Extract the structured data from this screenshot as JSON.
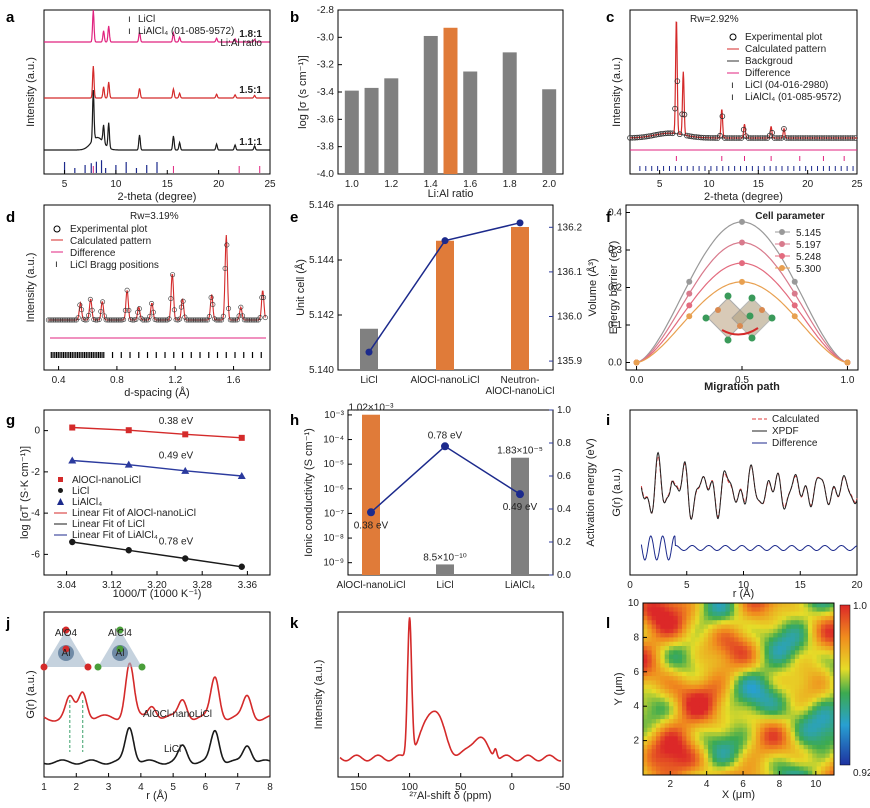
{
  "colors": {
    "pink": "#e0237f",
    "red": "#d42a2a",
    "black": "#1a1a1a",
    "navy": "#1c2a8c",
    "orange": "#e07b39",
    "gray": "#808080",
    "blue": "#2b3a9e"
  },
  "chart_data": [
    {
      "id": "a",
      "label": "a",
      "type": "line",
      "title": "",
      "xlabel": "2-theta (degree)",
      "ylabel": "Intensity (a.u.)",
      "xlim": [
        3,
        25
      ],
      "xticks": [
        "5",
        "10",
        "15",
        "20",
        "25"
      ],
      "legend": [
        "LiCl",
        "LiAlCl₄ (01-085-9572)"
      ],
      "annotation_title": "Li:Al ratio",
      "series": [
        {
          "name": "1.8:1",
          "color": "#e0237f"
        },
        {
          "name": "1.5:1",
          "color": "#d42a2a"
        },
        {
          "name": "1.1:1",
          "color": "#1a1a1a"
        }
      ]
    },
    {
      "id": "b",
      "label": "b",
      "type": "bar",
      "xlabel": "Li:Al ratio",
      "ylabel": "log [σ (s cm⁻¹)]",
      "ylim": [
        -4.0,
        -2.8
      ],
      "xticks": [
        "1.0",
        "1.2",
        "1.4",
        "1.6",
        "1.8",
        "2.0"
      ],
      "yticks": [
        "-4.0",
        "-3.8",
        "-3.6",
        "-3.4",
        "-3.2",
        "-3.0",
        "-2.8"
      ],
      "x": [
        1.0,
        1.1,
        1.2,
        1.4,
        1.5,
        1.6,
        1.8,
        2.0
      ],
      "values": [
        -3.39,
        -3.37,
        -3.3,
        -2.99,
        -2.93,
        -3.25,
        -3.11,
        -3.38
      ],
      "highlight_index": 4
    },
    {
      "id": "c",
      "label": "c",
      "type": "line",
      "xlabel": "2-theta (degree)",
      "ylabel": "Intensity (a.u.)",
      "xlim": [
        2,
        25
      ],
      "xticks": [
        "5",
        "10",
        "15",
        "20",
        "25"
      ],
      "rw": "Rw=2.92%",
      "legend": [
        "Experimental plot",
        "Calculated pattern",
        "Backgroud",
        "Difference",
        "LiCl (04-016-2980)",
        "LiAlCl₄ (01-085-9572)"
      ]
    },
    {
      "id": "d",
      "label": "d",
      "type": "line",
      "xlabel": "d-spacing (Å)",
      "ylabel": "Intensity (a.u.)",
      "xlim": [
        0.3,
        1.85
      ],
      "xticks": [
        "0.4",
        "0.8",
        "1.2",
        "1.6"
      ],
      "rw": "Rw=3.19%",
      "legend": [
        "Experimental plot",
        "Calculated pattern",
        "Difference",
        "LiCl Bragg positions"
      ]
    },
    {
      "id": "e",
      "label": "e",
      "type": "bar",
      "categories": [
        "LiCl",
        "AlOCl-nanoLiCl",
        "Neutron-\nAlOCl-nanoLiCl"
      ],
      "ylabel": "Unit cell (Å)",
      "y2label": "Volume (Å³)",
      "ylim": [
        5.14,
        5.146
      ],
      "y2lim": [
        135.88,
        136.25
      ],
      "yticks": [
        "5.140",
        "5.142",
        "5.144",
        "5.146"
      ],
      "y2ticks": [
        "135.9",
        "136.0",
        "136.1",
        "136.2"
      ],
      "values": [
        5.1415,
        5.1447,
        5.1452
      ],
      "volume": [
        135.92,
        136.17,
        136.21
      ]
    },
    {
      "id": "f",
      "label": "f",
      "type": "line",
      "xlabel": "Migration path",
      "ylabel": "Energy barrier (eV)",
      "xlim": [
        -0.05,
        1.05
      ],
      "ylim": [
        -0.02,
        0.42
      ],
      "xticks": [
        "0.0",
        "0.5",
        "1.0"
      ],
      "yticks": [
        "0.0",
        "0.1",
        "0.2",
        "0.3",
        "0.4"
      ],
      "legend_title": "Cell parameter",
      "series": [
        {
          "name": "5.145",
          "peak": 0.375,
          "color": "#999999"
        },
        {
          "name": "5.197",
          "peak": 0.32,
          "color": "#d87a8c"
        },
        {
          "name": "5.248",
          "peak": 0.265,
          "color": "#e36b7e"
        },
        {
          "name": "5.300",
          "peak": 0.215,
          "color": "#e8a050"
        }
      ]
    },
    {
      "id": "g",
      "label": "g",
      "type": "scatter",
      "xlabel": "1000/T (1000 K⁻¹)",
      "ylabel": "log [σT (S·K cm⁻¹)]",
      "xlim": [
        3.0,
        3.4
      ],
      "ylim": [
        -7,
        1
      ],
      "xticks": [
        "3.04",
        "3.12",
        "3.20",
        "3.28",
        "3.36"
      ],
      "yticks": [
        "-6",
        "-4",
        "-2",
        "0"
      ],
      "legend": [
        "AlOCl-nanoLiCl",
        "LiCl",
        "LiAlCl₄",
        "Linear Fit of AlOCl-nanoLiCl",
        "Linear Fit of LiCl",
        "Linear Fit of LiAlCl₄"
      ],
      "series": [
        {
          "name": "AlOCl-nanoLiCl",
          "x": [
            3.05,
            3.15,
            3.25,
            3.35
          ],
          "y": [
            0.15,
            0.02,
            -0.18,
            -0.35
          ],
          "energy": "0.38 eV",
          "color": "#d42a2a"
        },
        {
          "name": "LiAlCl₄",
          "x": [
            3.05,
            3.15,
            3.25,
            3.35
          ],
          "y": [
            -1.45,
            -1.65,
            -1.95,
            -2.2
          ],
          "energy": "0.49 eV",
          "color": "#2b3a9e"
        },
        {
          "name": "LiCl",
          "x": [
            3.05,
            3.15,
            3.25,
            3.35
          ],
          "y": [
            -5.4,
            -5.8,
            -6.2,
            -6.6
          ],
          "energy": "0.78 eV",
          "color": "#1a1a1a"
        }
      ]
    },
    {
      "id": "h",
      "label": "h",
      "type": "bar",
      "categories": [
        "AlOCl-nanoLiCl",
        "LiCl",
        "LiAlCl₄"
      ],
      "ylabel": "Ionic conductivity (S cm⁻¹)",
      "y2label": "Activation energy (eV)",
      "values": [
        0.00102,
        8.5e-10,
        1.83e-05
      ],
      "value_labels": [
        "1.02×10⁻³",
        "8.5×10⁻¹⁰",
        "1.83×10⁻⁵"
      ],
      "yticks": [
        "10⁻⁹",
        "10⁻⁸",
        "10⁻⁷",
        "10⁻⁶",
        "10⁻⁵",
        "10⁻⁴",
        "10⁻³"
      ],
      "y2ticks": [
        "0.0",
        "0.2",
        "0.4",
        "0.6",
        "0.8",
        "1.0"
      ],
      "energy": [
        0.38,
        0.78,
        0.49
      ],
      "energy_labels": [
        "0.38 eV",
        "0.78 eV",
        "0.49 eV"
      ]
    },
    {
      "id": "i",
      "label": "i",
      "type": "line",
      "xlabel": "r (Å)",
      "ylabel": "G(r) (a.u.)",
      "xlim": [
        0,
        20
      ],
      "xticks": [
        "0",
        "5",
        "10",
        "15",
        "20"
      ],
      "legend": [
        "Calculated",
        "XPDF",
        "Difference"
      ]
    },
    {
      "id": "j",
      "label": "j",
      "type": "line",
      "xlabel": "r (Å)",
      "ylabel": "G(r) (a.u.)",
      "xlim": [
        1,
        8
      ],
      "xticks": [
        "1",
        "2",
        "3",
        "4",
        "5",
        "6",
        "7",
        "8"
      ],
      "series": [
        {
          "name": "AlOCl-nanoLiCl",
          "color": "#d42a2a"
        },
        {
          "name": "LiCl",
          "color": "#1a1a1a"
        }
      ],
      "annotations": [
        "AlO4",
        "AlCl4",
        "Al",
        "Al"
      ]
    },
    {
      "id": "k",
      "label": "k",
      "type": "line",
      "xlabel": "²⁷Al-shift δ (ppm)",
      "ylabel": "Intensity (a.u.)",
      "xlim": [
        170,
        -50
      ],
      "xticks": [
        "150",
        "100",
        "50",
        "0",
        "-50"
      ],
      "peaks_ppm": [
        100,
        77,
        33,
        16
      ]
    },
    {
      "id": "l",
      "label": "l",
      "type": "heatmap",
      "xlabel": "X (μm)",
      "ylabel": "Y (μm)",
      "xlim": [
        0.5,
        11
      ],
      "ylim": [
        0,
        10
      ],
      "xticks": [
        "2",
        "4",
        "6",
        "8",
        "10"
      ],
      "yticks": [
        "2",
        "4",
        "6",
        "8",
        "10"
      ],
      "colorbar": [
        "1.0",
        "0.92"
      ]
    }
  ]
}
